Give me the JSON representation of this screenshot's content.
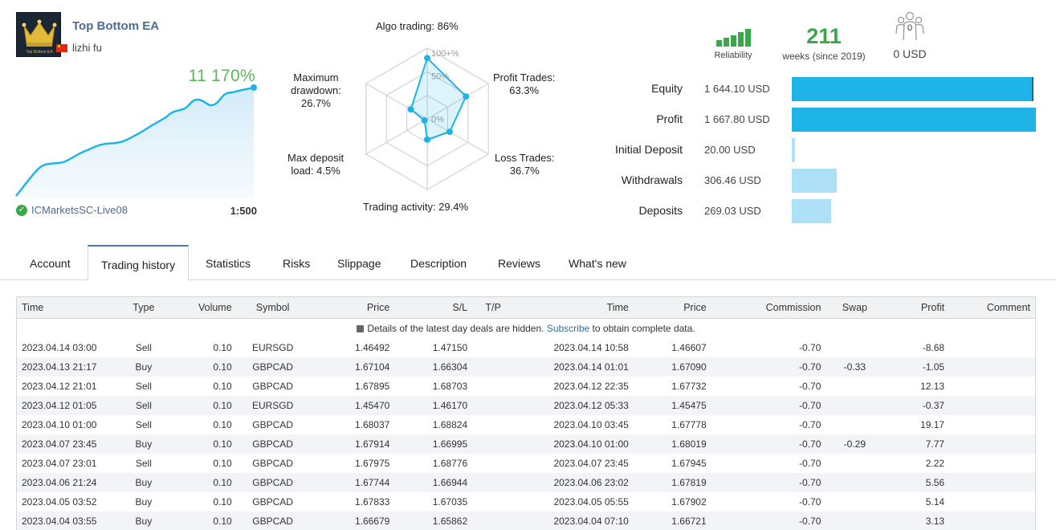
{
  "signal": {
    "name": "Top Bottom EA",
    "author": "lizhi fu",
    "logo_text": "Top Bottom EA",
    "growth": "11 170%",
    "broker": "ICMarketsSC-Live08",
    "leverage": "1:500"
  },
  "radar": {
    "scale_labels": [
      "100+%",
      "50%",
      "0%"
    ],
    "axes": [
      {
        "label_line1": "Algo trading: 86%",
        "label_line2": "",
        "value_pct": 86
      },
      {
        "label_line1": "Profit Trades:",
        "label_line2": "63.3%",
        "value_pct": 63.3
      },
      {
        "label_line1": "Loss Trades:",
        "label_line2": "36.7%",
        "value_pct": 36.7
      },
      {
        "label_line1": "Trading activity: 29.4%",
        "label_line2": "",
        "value_pct": 29.4
      },
      {
        "label_line1": "Max deposit",
        "label_line2": "load: 4.5%",
        "value_pct": 4.5
      },
      {
        "label_line1": "Maximum",
        "label_line2": "drawdown:",
        "label_line3": "26.7%",
        "value_pct": 26.7
      }
    ],
    "color": "#1fb4e8"
  },
  "stats": {
    "reliability_label": "Reliability",
    "weeks_value": "211",
    "weeks_label": "weeks (since 2019)",
    "subscribers_count": "0",
    "subscribers_funds": "0 USD"
  },
  "finance": [
    {
      "label": "Equity",
      "value": "1 644.10 USD",
      "fraction": 0.99,
      "color": "#1fb4e8"
    },
    {
      "label": "Profit",
      "value": "1 667.80 USD",
      "fraction": 1.0,
      "color": "#1fb4e8"
    },
    {
      "label": "Initial Deposit",
      "value": "20.00 USD",
      "fraction": 0.012,
      "color": "#aee1f7"
    },
    {
      "label": "Withdrawals",
      "value": "306.46 USD",
      "fraction": 0.184,
      "color": "#aee1f7"
    },
    {
      "label": "Deposits",
      "value": "269.03 USD",
      "fraction": 0.161,
      "color": "#aee1f7"
    }
  ],
  "tabs": [
    "Account",
    "Trading history",
    "Statistics",
    "Risks",
    "Slippage",
    "Description",
    "Reviews",
    "What's new"
  ],
  "active_tab": "Trading history",
  "table": {
    "headers": [
      "Time",
      "Type",
      "Volume",
      "Symbol",
      "Price",
      "S/L",
      "T/P",
      "Time",
      "Price",
      "Commission",
      "Swap",
      "Profit",
      "Comment"
    ],
    "notice_before": "Details of the latest day deals are hidden.",
    "notice_link": "Subscribe",
    "notice_after": "to obtain complete data.",
    "rows": [
      [
        "2023.04.14 03:00",
        "Sell",
        "0.10",
        "EURSGD",
        "1.46492",
        "1.47150",
        "",
        "2023.04.14 10:58",
        "1.46607",
        "-0.70",
        "",
        "-8.68",
        ""
      ],
      [
        "2023.04.13 21:17",
        "Buy",
        "0.10",
        "GBPCAD",
        "1.67104",
        "1.66304",
        "",
        "2023.04.14 01:01",
        "1.67090",
        "-0.70",
        "-0.33",
        "-1.05",
        ""
      ],
      [
        "2023.04.12 21:01",
        "Sell",
        "0.10",
        "GBPCAD",
        "1.67895",
        "1.68703",
        "",
        "2023.04.12 22:35",
        "1.67732",
        "-0.70",
        "",
        "12.13",
        ""
      ],
      [
        "2023.04.12 01:05",
        "Sell",
        "0.10",
        "EURSGD",
        "1.45470",
        "1.46170",
        "",
        "2023.04.12 05:33",
        "1.45475",
        "-0.70",
        "",
        "-0.37",
        ""
      ],
      [
        "2023.04.10 01:00",
        "Sell",
        "0.10",
        "GBPCAD",
        "1.68037",
        "1.68824",
        "",
        "2023.04.10 03:45",
        "1.67778",
        "-0.70",
        "",
        "19.17",
        ""
      ],
      [
        "2023.04.07 23:45",
        "Buy",
        "0.10",
        "GBPCAD",
        "1.67914",
        "1.66995",
        "",
        "2023.04.10 01:00",
        "1.68019",
        "-0.70",
        "-0.29",
        "7.77",
        ""
      ],
      [
        "2023.04.07 23:01",
        "Sell",
        "0.10",
        "GBPCAD",
        "1.67975",
        "1.68776",
        "",
        "2023.04.07 23:45",
        "1.67945",
        "-0.70",
        "",
        "2.22",
        ""
      ],
      [
        "2023.04.06 21:24",
        "Buy",
        "0.10",
        "GBPCAD",
        "1.67744",
        "1.66944",
        "",
        "2023.04.06 23:02",
        "1.67819",
        "-0.70",
        "",
        "5.56",
        ""
      ],
      [
        "2023.04.05 03:52",
        "Buy",
        "0.10",
        "GBPCAD",
        "1.67833",
        "1.67035",
        "",
        "2023.04.05 05:55",
        "1.67902",
        "-0.70",
        "",
        "5.14",
        ""
      ],
      [
        "2023.04.04 03:55",
        "Buy",
        "0.10",
        "GBPCAD",
        "1.66679",
        "1.65862",
        "",
        "2023.04.04 07:10",
        "1.66721",
        "-0.70",
        "",
        "3.13",
        ""
      ]
    ]
  },
  "colors": {
    "accent": "#1fb4e8",
    "green": "#3ba64a",
    "negative": "#c40000",
    "positive": "#2e5e8c",
    "link": "#4a6b93"
  }
}
